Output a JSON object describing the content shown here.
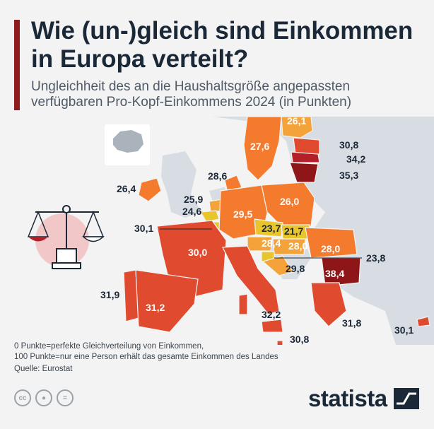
{
  "header": {
    "title_line1": "Wie (un-)gleich sind Einkommen",
    "title_line2": "in Europa verteilt?",
    "subtitle_line1": "Ungleichheit des an die Haushaltsgröße angepassten",
    "subtitle_line2": "verfügbaren Pro-Kopf-Einkommens 2024 (in Punkten)"
  },
  "countries": {
    "finland": "26,1",
    "sweden": "27,6",
    "latvia": "30,8",
    "estonia_lithuania_upper": "34,2",
    "lithuania": "35,3",
    "denmark": "28,6",
    "ireland": "26,4",
    "netherlands": "25,9",
    "belgium": "24,6",
    "luxembourg": "30,1",
    "germany": "29,5",
    "poland": "26,0",
    "czechia": "23,7",
    "slovakia": "21,7",
    "austria": "28,4",
    "hungary": "28,0",
    "romania": "28,0",
    "slovenia": "23,8",
    "croatia": "29,8",
    "bulgaria": "38,4",
    "france": "30,0",
    "portugal": "31,9",
    "spain": "31,2",
    "italy": "32,2",
    "greece": "31,8",
    "malta": "30,8",
    "cyprus": "30,1"
  },
  "footer": {
    "note_line1": "0 Punkte=perfekte Gleichverteilung von Einkommen,",
    "note_line2": "100 Punkte=nur eine Person erhält das gesamte Einkommen des Landes",
    "source": "Quelle: Eurostat",
    "cc_icons": [
      "cc-icon",
      "by-icon",
      "equals-icon"
    ],
    "brand": "statista"
  },
  "colors": {
    "accent": "#8e1c1c",
    "title": "#1b2838",
    "low": "#e8c52c",
    "mid_low": "#f3a33a",
    "mid": "#f47a2e",
    "high": "#e04a2e",
    "very_high": "#b3202a",
    "top": "#8e1518",
    "background_land": "#d7dde3",
    "sea": "#f3f3f3"
  }
}
